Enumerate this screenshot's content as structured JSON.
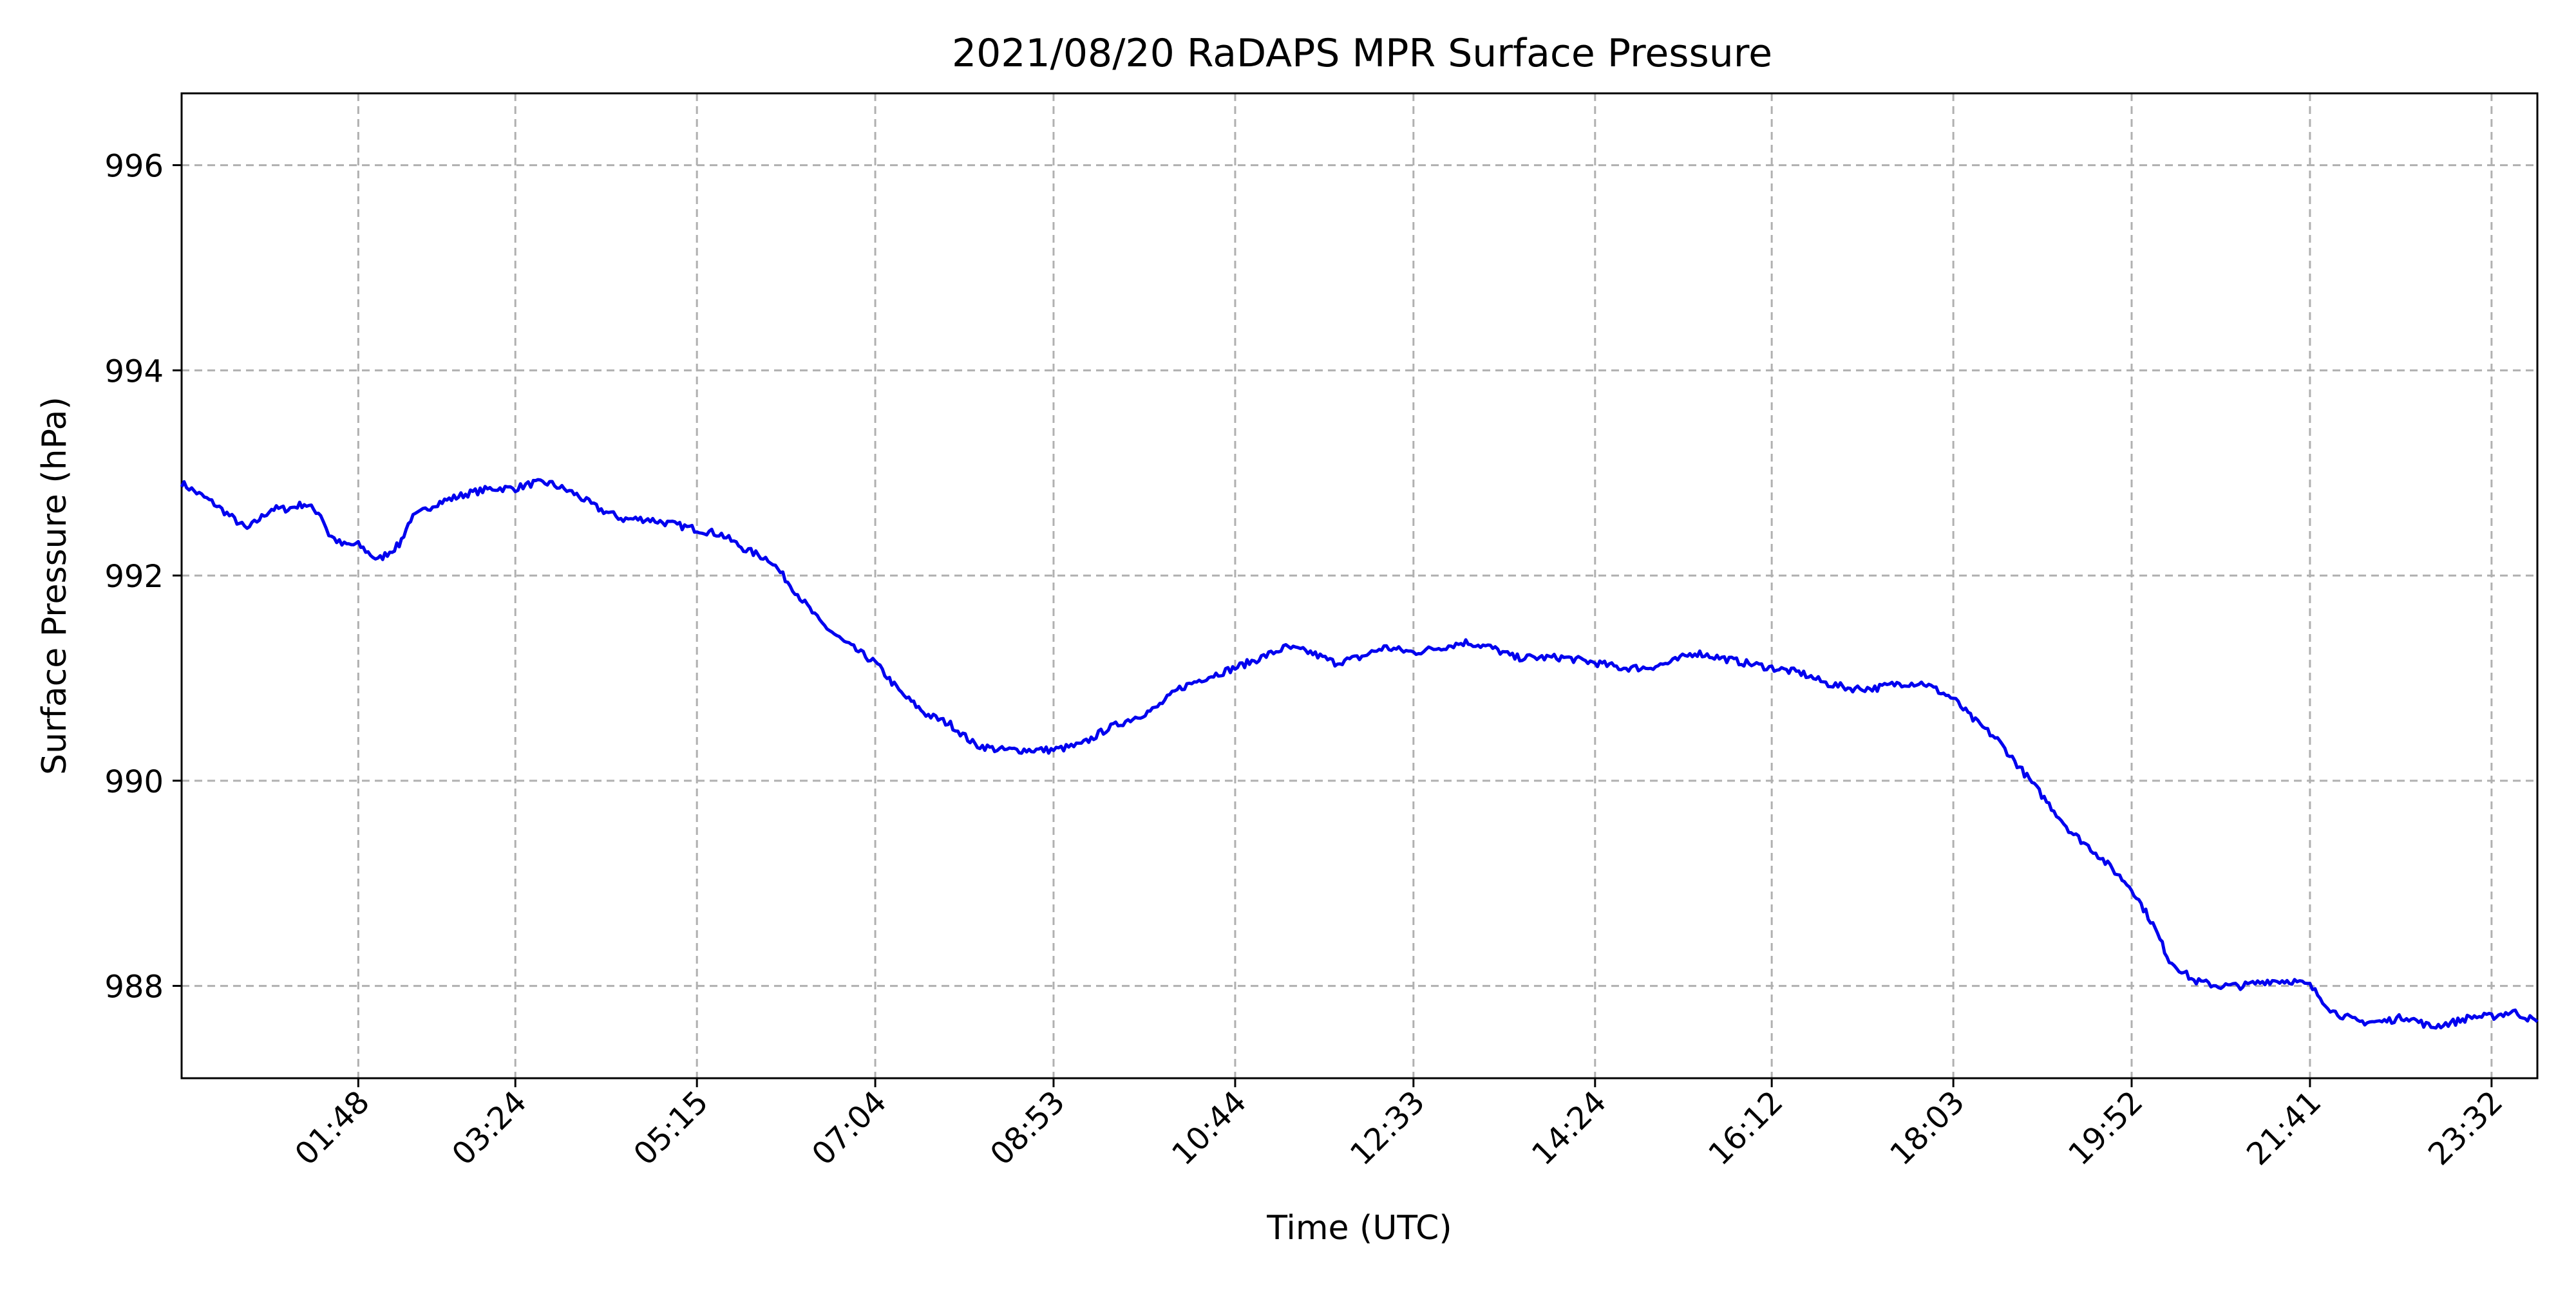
{
  "chart_data": {
    "type": "line",
    "title": "2021/08/20 RaDAPS MPR Surface Pressure",
    "xlabel": "Time (UTC)",
    "ylabel": "Surface Pressure (hPa)",
    "x_unit": "time of day (UTC, HH:MM)",
    "xlim": [
      "00:00",
      "24:00"
    ],
    "ylim": [
      987.1,
      996.7
    ],
    "x_ticks": [
      "01:48",
      "03:24",
      "05:15",
      "07:04",
      "08:53",
      "10:44",
      "12:33",
      "14:24",
      "16:12",
      "18:03",
      "19:52",
      "21:41",
      "23:32"
    ],
    "y_ticks": [
      988,
      990,
      992,
      994,
      996
    ],
    "grid": true,
    "grid_style": "dashed",
    "colors": {
      "line": "#0000ee",
      "grid": "#b0b0b0",
      "axes": "#000000"
    },
    "series": [
      {
        "x": [
          "00:00",
          "00:20",
          "00:40",
          "00:55",
          "01:05",
          "01:15",
          "01:25",
          "01:30",
          "01:38",
          "01:48",
          "02:00",
          "02:13",
          "02:20",
          "02:35",
          "02:45",
          "02:55",
          "03:10",
          "03:24",
          "03:35",
          "03:45",
          "04:00",
          "04:15",
          "04:30",
          "04:45",
          "05:00",
          "05:15",
          "05:30",
          "05:45",
          "06:00",
          "06:15",
          "06:30",
          "06:45",
          "07:04",
          "07:20",
          "07:35",
          "07:50",
          "08:05",
          "08:20",
          "08:35",
          "08:53",
          "09:10",
          "09:25",
          "09:40",
          "09:55",
          "10:10",
          "10:25",
          "10:44",
          "11:00",
          "11:15",
          "11:30",
          "11:45",
          "12:00",
          "12:15",
          "12:33",
          "12:50",
          "13:05",
          "13:20",
          "13:35",
          "13:50",
          "14:05",
          "14:24",
          "14:40",
          "14:55",
          "15:10",
          "15:25",
          "15:40",
          "15:55",
          "16:12",
          "16:30",
          "16:45",
          "17:00",
          "17:15",
          "17:30",
          "17:45",
          "18:03",
          "18:15",
          "18:30",
          "18:45",
          "19:00",
          "19:15",
          "19:30",
          "19:52",
          "20:05",
          "20:15",
          "20:30",
          "20:45",
          "21:00",
          "21:15",
          "21:30",
          "21:41",
          "21:55",
          "22:10",
          "22:25",
          "22:40",
          "22:55",
          "23:10",
          "23:20",
          "23:32",
          "23:45",
          "24:00"
        ],
        "y": [
          992.9,
          992.7,
          992.45,
          992.65,
          992.65,
          992.7,
          992.6,
          992.4,
          992.3,
          992.3,
          992.15,
          992.3,
          992.55,
          992.7,
          992.75,
          992.8,
          992.85,
          992.85,
          992.9,
          992.9,
          992.8,
          992.65,
          992.55,
          992.55,
          992.5,
          992.45,
          992.4,
          992.25,
          992.15,
          991.85,
          991.55,
          991.35,
          991.15,
          990.85,
          990.65,
          990.55,
          990.35,
          990.3,
          990.3,
          990.3,
          990.35,
          990.5,
          990.6,
          990.7,
          990.9,
          991.0,
          991.1,
          991.2,
          991.3,
          991.25,
          991.15,
          991.2,
          991.3,
          991.25,
          991.3,
          991.35,
          991.3,
          991.2,
          991.2,
          991.2,
          991.15,
          991.1,
          991.1,
          991.15,
          991.25,
          991.2,
          991.15,
          991.1,
          991.05,
          990.95,
          990.9,
          990.9,
          990.95,
          990.95,
          990.8,
          990.6,
          990.4,
          990.1,
          989.8,
          989.5,
          989.3,
          988.95,
          988.6,
          988.25,
          988.05,
          988.0,
          988.0,
          988.05,
          988.05,
          988.0,
          987.75,
          987.65,
          987.65,
          987.7,
          987.6,
          987.65,
          987.7,
          987.7,
          987.75,
          987.65
        ]
      }
    ]
  }
}
